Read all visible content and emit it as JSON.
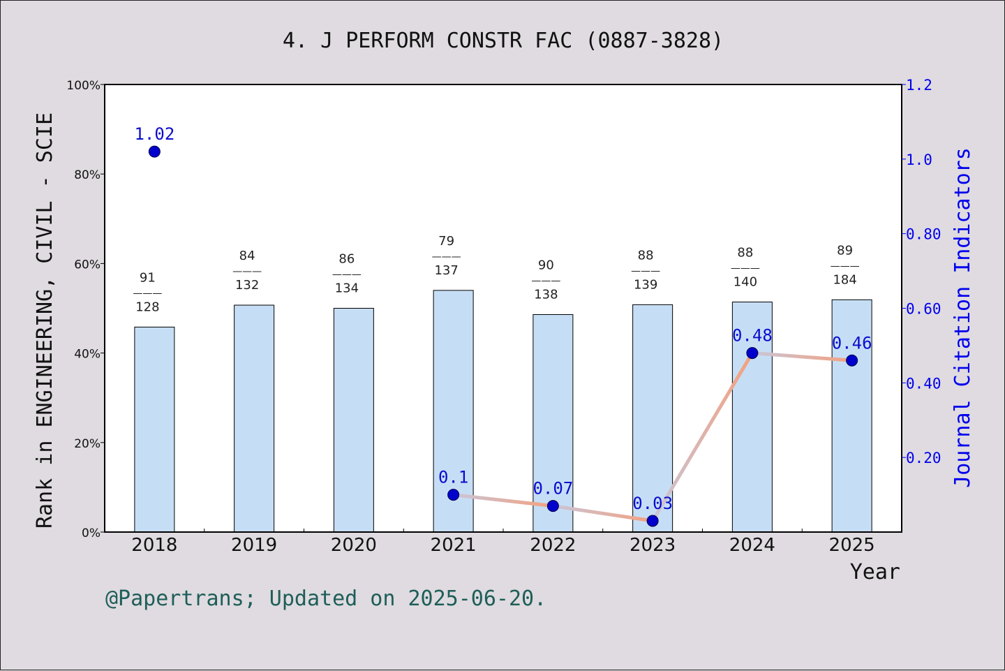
{
  "chart_data": {
    "type": "bar",
    "title": "4. J PERFORM CONSTR FAC (0887-3828)",
    "xlabel": "Year",
    "ylabel": "Rank in ENGINEERING, CIVIL - SCIE",
    "y2label": "Journal Citation Indicators",
    "footer": "@Papertrans; Updated on 2025-06-20.",
    "categories": [
      "2018",
      "2019",
      "2020",
      "2021",
      "2022",
      "2023",
      "2024",
      "2025"
    ],
    "ylim": [
      0,
      100
    ],
    "y_ticks": [
      "0%",
      "20%",
      "40%",
      "60%",
      "80%",
      "100%"
    ],
    "y2lim": [
      0,
      1.2
    ],
    "y2_ticks": [
      {
        "value": 0.2,
        "label": "0.20"
      },
      {
        "value": 0.4,
        "label": "0.40"
      },
      {
        "value": 0.6,
        "label": "0.60"
      },
      {
        "value": 0.8,
        "label": "0.80"
      },
      {
        "value": 1.0,
        "label": "1.0"
      },
      {
        "value": 1.2,
        "label": "1.2"
      }
    ],
    "bars": {
      "values": [
        45.8,
        50.7,
        50.0,
        54.0,
        48.6,
        50.8,
        51.4,
        51.9
      ],
      "rank": [
        "91",
        "84",
        "86",
        "79",
        "90",
        "88",
        "88",
        "89"
      ],
      "total": [
        "128",
        "132",
        "134",
        "137",
        "138",
        "139",
        "140",
        "184"
      ],
      "separator": "———"
    },
    "jci": {
      "values": [
        1.02,
        null,
        null,
        0.1,
        0.07,
        0.03,
        0.48,
        0.46
      ],
      "labels": [
        "1.02",
        "",
        "",
        "0.1",
        "0.07",
        "0.03",
        "0.48",
        "0.46"
      ]
    },
    "colors": {
      "bar_fill": "#c6def5",
      "point": "#0000cc",
      "line": "#f4a07e",
      "line_muted": "#c9c6d8",
      "right_axis": "#0000ee",
      "footer": "#1e5e58",
      "background": "#dfdbe0"
    }
  }
}
